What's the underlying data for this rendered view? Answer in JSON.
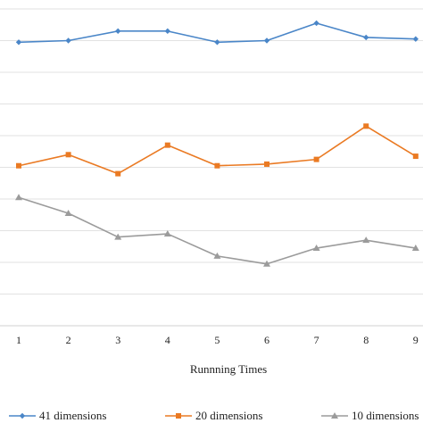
{
  "chart_data": {
    "type": "line",
    "title": "",
    "xlabel": "Runnning Times",
    "ylabel": "",
    "categories": [
      "1",
      "2",
      "3",
      "4",
      "5",
      "6",
      "7",
      "8",
      "9"
    ],
    "ylim": [
      0,
      10
    ],
    "gridlines": [
      1,
      2,
      3,
      4,
      5,
      6,
      7,
      8,
      9,
      10
    ],
    "grid": true,
    "legend": "bottom",
    "series": [
      {
        "name": "41 dimensions",
        "color": "#4a86c8",
        "marker": "diamond",
        "values": [
          8.95,
          9.0,
          9.3,
          9.3,
          8.95,
          9.0,
          9.55,
          9.1,
          9.05
        ]
      },
      {
        "name": "20 dimensions",
        "color": "#ea7a23",
        "marker": "square",
        "values": [
          5.05,
          5.4,
          4.8,
          5.7,
          5.05,
          5.1,
          5.25,
          6.3,
          5.35
        ]
      },
      {
        "name": "10 dimensions",
        "color": "#9b9b9b",
        "marker": "triangle",
        "values": [
          4.05,
          3.55,
          2.8,
          2.9,
          2.2,
          1.95,
          2.45,
          2.7,
          2.45
        ]
      }
    ]
  }
}
